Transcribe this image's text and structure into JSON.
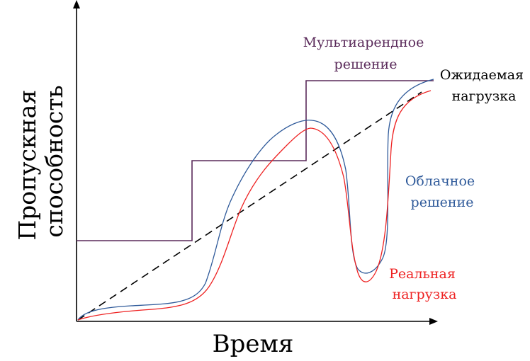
{
  "labels": {
    "y_axis": [
      "Пропускная",
      "способность"
    ],
    "x_axis": "Время",
    "multitenant": [
      "Мультиарендное",
      "решение"
    ],
    "expected": [
      "Ожидаемая",
      "нагрузка"
    ],
    "cloud": [
      "Облачное",
      "решение"
    ],
    "real": [
      "Реальная",
      "нагрузка"
    ]
  },
  "colors": {
    "axis": "#000000",
    "multitenant": "#5a2a5a",
    "expected": "#000000",
    "cloud": "#2f5a9a",
    "real": "#ee2222"
  }
}
